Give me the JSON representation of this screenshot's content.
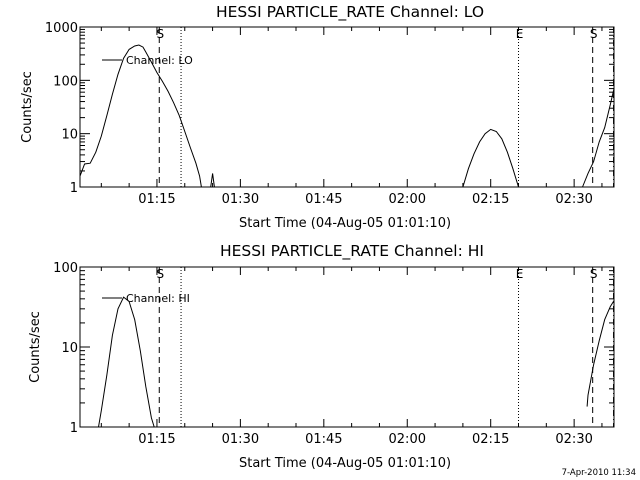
{
  "footer": "7-Apr-2010 11:34",
  "chart_data": [
    {
      "type": "line",
      "title": "HESSI PARTICLE_RATE Channel: LO",
      "xlabel": "Start Time (04-Aug-05 01:01:10)",
      "ylabel": "Counts/sec",
      "yscale": "log",
      "ylim": [
        1,
        1000
      ],
      "xlim": [
        "01:01:10",
        "02:37:10"
      ],
      "x_ticks": [
        "01:15",
        "01:30",
        "01:45",
        "02:00",
        "02:15",
        "02:30"
      ],
      "y_ticks": [
        "1",
        "10",
        "100",
        "1000"
      ],
      "legend": "top-left",
      "grid": false,
      "vlines": [
        {
          "x": "01:15:25",
          "style": "dashed",
          "label": "S"
        },
        {
          "x": "01:19:20",
          "style": "dotted",
          "label": ""
        },
        {
          "x": "02:20:00",
          "style": "dotted",
          "label": "E"
        },
        {
          "x": "02:33:20",
          "style": "dashed",
          "label": "S"
        },
        {
          "x": "02:37:05",
          "style": "dashdot",
          "label": ""
        }
      ],
      "series": [
        {
          "name": "Channel: LO",
          "segments": [
            [
              [
                "01:01:10",
                1.6
              ],
              [
                "01:02:00",
                2.7
              ],
              [
                "01:03:00",
                2.8
              ],
              [
                "01:04:00",
                4.5
              ],
              [
                "01:05:00",
                9
              ],
              [
                "01:06:00",
                22
              ],
              [
                "01:07:00",
                55
              ],
              [
                "01:08:00",
                130
              ],
              [
                "01:09:00",
                260
              ],
              [
                "01:10:00",
                380
              ],
              [
                "01:11:00",
                440
              ],
              [
                "01:11:45",
                460
              ],
              [
                "01:12:30",
                420
              ],
              [
                "01:13:00",
                340
              ],
              [
                "01:14:00",
                220
              ],
              [
                "01:15:00",
                140
              ],
              [
                "01:16:00",
                95
              ],
              [
                "01:17:00",
                62
              ],
              [
                "01:18:00",
                38
              ],
              [
                "01:19:00",
                22
              ],
              [
                "01:20:00",
                11
              ],
              [
                "01:21:00",
                5.5
              ],
              [
                "01:22:00",
                2.8
              ],
              [
                "01:22:40",
                1.6
              ],
              [
                "01:23:00",
                1
              ]
            ],
            [
              [
                "01:24:40",
                1
              ],
              [
                "01:25:00",
                1.8
              ],
              [
                "01:25:20",
                1
              ]
            ],
            [
              [
                "02:10:00",
                1
              ],
              [
                "02:11:00",
                2.2
              ],
              [
                "02:12:00",
                4.2
              ],
              [
                "02:13:00",
                7
              ],
              [
                "02:14:00",
                10
              ],
              [
                "02:15:00",
                12
              ],
              [
                "02:16:00",
                11
              ],
              [
                "02:17:00",
                8
              ],
              [
                "02:18:00",
                4.5
              ],
              [
                "02:19:00",
                2.2
              ],
              [
                "02:20:00",
                1
              ]
            ],
            [
              [
                "02:31:30",
                1
              ],
              [
                "02:32:30",
                1.8
              ],
              [
                "02:33:30",
                3
              ],
              [
                "02:34:30",
                7
              ],
              [
                "02:35:30",
                13
              ],
              [
                "02:36:30",
                35
              ],
              [
                "02:37:10",
                70
              ]
            ]
          ]
        }
      ]
    },
    {
      "type": "line",
      "title": "HESSI PARTICLE_RATE Channel: HI",
      "xlabel": "Start Time (04-Aug-05 01:01:10)",
      "ylabel": "Counts/sec",
      "yscale": "log",
      "ylim": [
        1,
        100
      ],
      "xlim": [
        "01:01:10",
        "02:37:10"
      ],
      "x_ticks": [
        "01:15",
        "01:30",
        "01:45",
        "02:00",
        "02:15",
        "02:30"
      ],
      "y_ticks": [
        "1",
        "10",
        "100"
      ],
      "legend": "top-left",
      "grid": false,
      "vlines": [
        {
          "x": "01:15:25",
          "style": "dashed",
          "label": "S"
        },
        {
          "x": "01:19:20",
          "style": "dotted",
          "label": ""
        },
        {
          "x": "02:20:00",
          "style": "dotted",
          "label": "E"
        },
        {
          "x": "02:33:20",
          "style": "dashed",
          "label": "S"
        },
        {
          "x": "02:37:05",
          "style": "dashdot",
          "label": ""
        }
      ],
      "series": [
        {
          "name": "Channel: HI",
          "segments": [
            [
              [
                "01:04:30",
                1
              ],
              [
                "01:05:00",
                1.6
              ],
              [
                "01:06:00",
                4.5
              ],
              [
                "01:07:00",
                14
              ],
              [
                "01:08:00",
                30
              ],
              [
                "01:09:00",
                42
              ],
              [
                "01:10:00",
                37
              ],
              [
                "01:11:00",
                22
              ],
              [
                "01:12:00",
                9
              ],
              [
                "01:13:00",
                3.2
              ],
              [
                "01:14:00",
                1.3
              ],
              [
                "01:14:30",
                1
              ]
            ],
            [
              [
                "02:32:20",
                1.8
              ],
              [
                "02:32:30",
                2.5
              ],
              [
                "02:33:30",
                6
              ],
              [
                "02:34:30",
                12
              ],
              [
                "02:35:30",
                22
              ],
              [
                "02:36:30",
                32
              ],
              [
                "02:37:10",
                38
              ]
            ]
          ]
        }
      ]
    }
  ]
}
